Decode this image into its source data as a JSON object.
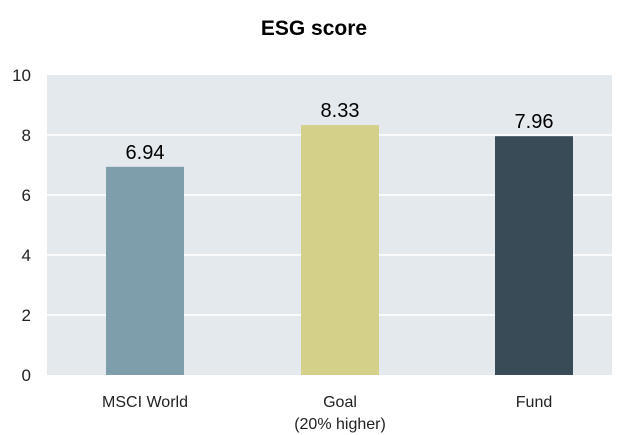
{
  "chart_data": {
    "type": "bar",
    "title": "ESG score",
    "categories": [
      [
        "MSCI World"
      ],
      [
        "Goal",
        "(20% higher)"
      ],
      [
        "Fund"
      ]
    ],
    "values": [
      6.94,
      8.33,
      7.96
    ],
    "value_labels": [
      "6.94",
      "8.33",
      "7.96"
    ],
    "ylim": [
      0,
      10
    ],
    "yticks": [
      0,
      2,
      4,
      6,
      8,
      10
    ],
    "grid": "horizontal",
    "legend": "none",
    "colors": {
      "plot_background": "#e4e9ee",
      "grid_line": "#ffffff",
      "bars": [
        "#7f9eab",
        "#d4cf89",
        "#3a4b58"
      ]
    }
  }
}
